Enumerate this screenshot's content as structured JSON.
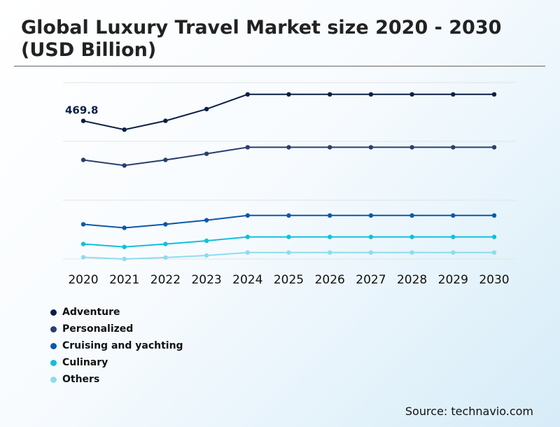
{
  "title": "Global Luxury Travel Market size 2020 - 2030 (USD Billion)",
  "source": "Source: technavio.com",
  "chart_data": {
    "type": "line",
    "title": "Global Luxury Travel Market size 2020 - 2030 (USD Billion)",
    "x": [
      "2020",
      "2021",
      "2022",
      "2023",
      "2024",
      "2025",
      "2026",
      "2027",
      "2028",
      "2029",
      "2030"
    ],
    "ylim": [
      0,
      600
    ],
    "grid": true,
    "legend_position": "bottom-left",
    "annotations": [
      {
        "series": "Adventure",
        "x": "2020",
        "label": "469.8"
      }
    ],
    "series": [
      {
        "name": "Adventure",
        "color": "#0b1f44",
        "values": [
          469.8,
          440,
          470,
          510,
          560,
          560,
          560,
          560,
          560,
          560,
          560
        ]
      },
      {
        "name": "Personalized",
        "color": "#2a3f6e",
        "values": [
          337,
          318,
          337,
          358,
          380,
          380,
          380,
          380,
          380,
          380,
          380
        ]
      },
      {
        "name": "Cruising and yachting",
        "color": "#0d58a6",
        "values": [
          118,
          106,
          118,
          132,
          148,
          148,
          148,
          148,
          148,
          148,
          148
        ]
      },
      {
        "name": "Culinary",
        "color": "#11c0da",
        "values": [
          51,
          41,
          51,
          62,
          75,
          75,
          75,
          75,
          75,
          75,
          75
        ]
      },
      {
        "name": "Others",
        "color": "#8ddcef",
        "values": [
          6,
          0,
          5,
          12,
          22,
          22,
          22,
          22,
          22,
          22,
          22
        ]
      }
    ]
  }
}
